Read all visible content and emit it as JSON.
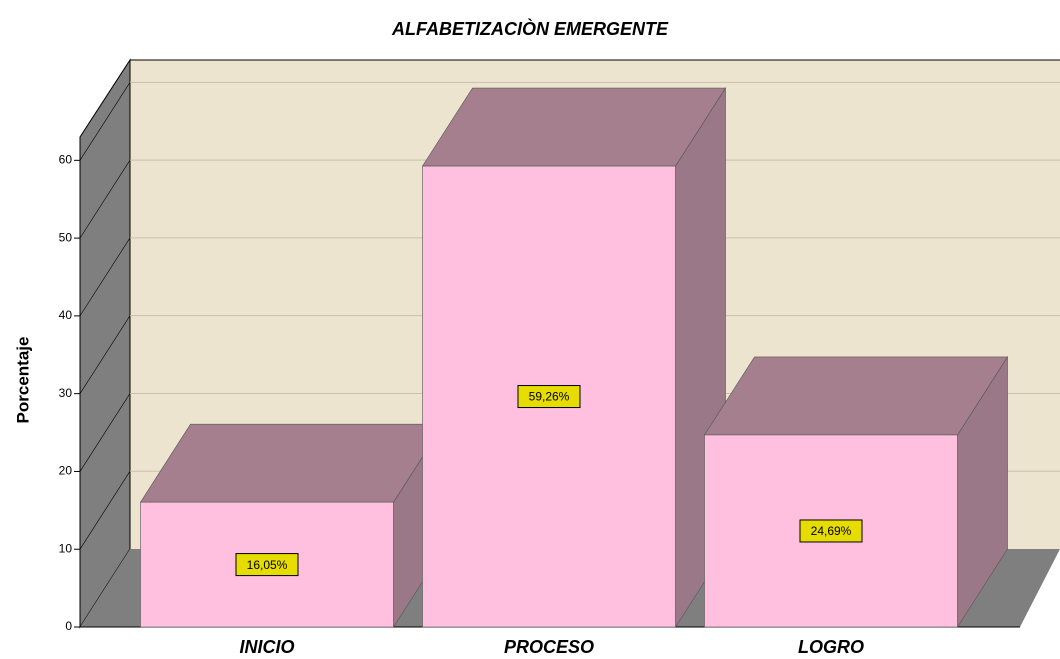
{
  "chart_data": {
    "type": "bar3d",
    "title": "ALFABETIZACIÒN EMERGENTE",
    "y_label": "Porcentaje",
    "categories": [
      "INICIO",
      "PROCESO",
      "LOGRO"
    ],
    "values": [
      16.05,
      59.26,
      24.69
    ],
    "value_labels": [
      "16,05%",
      "59,26%",
      "24,69%"
    ],
    "color": "#ffc0e0",
    "ylim": [
      0,
      63
    ],
    "yticks": [
      0,
      10,
      20,
      30,
      40,
      50,
      60
    ],
    "grid": true
  }
}
